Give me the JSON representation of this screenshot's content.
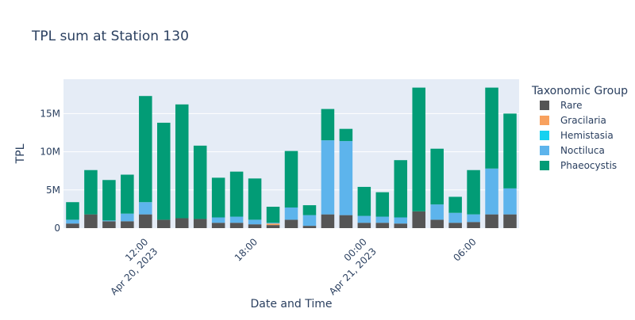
{
  "chart_data": {
    "type": "bar",
    "stacked": true,
    "title": "TPL sum at Station 130",
    "xlabel": "Date and Time",
    "ylabel": "TPL",
    "ylim": [
      0,
      19500000
    ],
    "yticks": [
      {
        "value": 0,
        "label": "0"
      },
      {
        "value": 5000000,
        "label": "5M"
      },
      {
        "value": 10000000,
        "label": "10M"
      },
      {
        "value": 15000000,
        "label": "15M"
      }
    ],
    "xticks": [
      {
        "index": 4,
        "label1": "12:00",
        "label2": "Apr 20, 2023"
      },
      {
        "index": 10,
        "label1": "18:00",
        "label2": ""
      },
      {
        "index": 16,
        "label1": "00:00",
        "label2": "Apr 21, 2023"
      },
      {
        "index": 22,
        "label1": "06:00",
        "label2": ""
      }
    ],
    "legend": {
      "title": "Taxonomic Group",
      "position": "right"
    },
    "grid": true,
    "series": [
      {
        "name": "Rare",
        "color": "#555555",
        "values": [
          600000,
          1800000,
          900000,
          900000,
          1800000,
          1100000,
          1300000,
          1200000,
          700000,
          700000,
          500000,
          400000,
          1100000,
          300000,
          1800000,
          1700000,
          700000,
          700000,
          600000,
          2200000,
          1100000,
          700000,
          800000,
          1800000,
          1800000
        ]
      },
      {
        "name": "Gracilaria",
        "color": "#F8A15E",
        "values": [
          0,
          0,
          0,
          0,
          0,
          0,
          0,
          0,
          0,
          0,
          0,
          200000,
          0,
          0,
          0,
          0,
          0,
          0,
          0,
          0,
          0,
          0,
          0,
          0,
          0
        ]
      },
      {
        "name": "Hemistasia",
        "color": "#17D1F0",
        "values": [
          0,
          0,
          0,
          0,
          0,
          0,
          0,
          0,
          0,
          0,
          0,
          0,
          0,
          0,
          0,
          0,
          0,
          0,
          0,
          0,
          0,
          0,
          0,
          0,
          0
        ]
      },
      {
        "name": "Noctiluca",
        "color": "#5DB4EC",
        "values": [
          500000,
          0,
          100000,
          1000000,
          1600000,
          0,
          0,
          0,
          700000,
          800000,
          600000,
          100000,
          1600000,
          1400000,
          9700000,
          9700000,
          900000,
          800000,
          800000,
          0,
          2000000,
          1300000,
          1000000,
          6000000,
          3400000
        ]
      },
      {
        "name": "Phaeocystis",
        "color": "#029C76",
        "values": [
          2300000,
          5800000,
          5300000,
          5100000,
          13900000,
          12700000,
          14900000,
          9600000,
          5200000,
          5900000,
          5400000,
          2100000,
          7400000,
          1300000,
          4100000,
          1600000,
          3800000,
          3200000,
          7500000,
          16200000,
          7300000,
          2100000,
          5800000,
          10600000,
          9800000
        ]
      }
    ]
  }
}
